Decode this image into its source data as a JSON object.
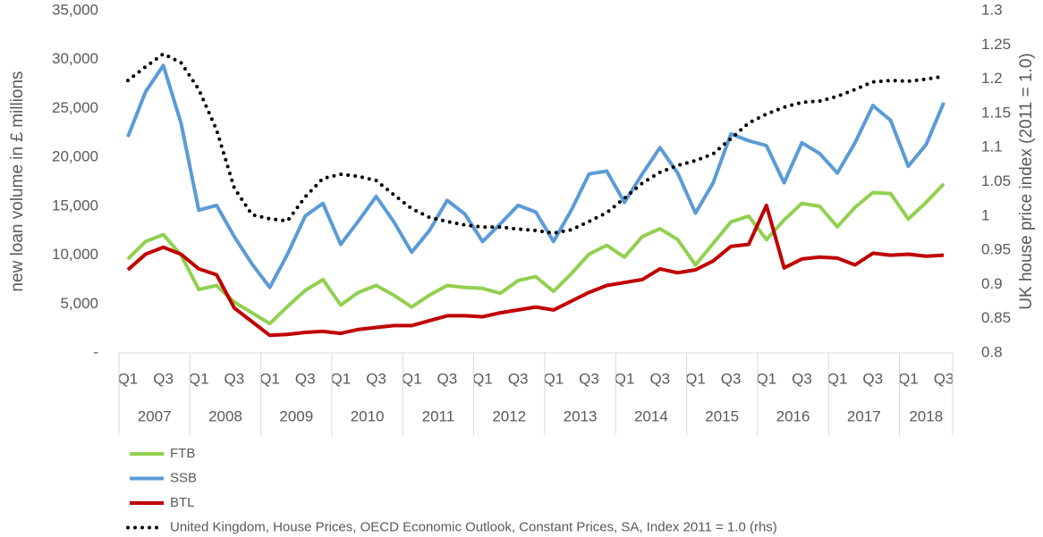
{
  "chart_data": {
    "type": "line",
    "categories": [
      "Q1",
      null,
      "Q3",
      null,
      "Q1",
      null,
      "Q3",
      null,
      "Q1",
      null,
      "Q3",
      null,
      "Q1",
      null,
      "Q3",
      null,
      "Q1",
      null,
      "Q3",
      null,
      "Q1",
      null,
      "Q3",
      null,
      "Q1",
      null,
      "Q3",
      null,
      "Q1",
      null,
      "Q3",
      null,
      "Q1",
      null,
      "Q3",
      null,
      "Q1",
      null,
      "Q3",
      null,
      "Q1",
      null,
      "Q3",
      null,
      "Q1",
      null,
      "Q3"
    ],
    "years": [
      "2007",
      "2008",
      "2009",
      "2010",
      "2011",
      "2012",
      "2013",
      "2014",
      "2015",
      "2016",
      "2017",
      "2018"
    ],
    "ylabel": "new loan volume in £ millions",
    "y2label": "UK house price index (2011 = 1.0)",
    "ylim": [
      0,
      35000
    ],
    "yticks": [
      {
        "value": 0,
        "label": "-"
      },
      {
        "value": 5000,
        "label": "5,000"
      },
      {
        "value": 10000,
        "label": "10,000"
      },
      {
        "value": 15000,
        "label": "15,000"
      },
      {
        "value": 20000,
        "label": "20,000"
      },
      {
        "value": 25000,
        "label": "25,000"
      },
      {
        "value": 30000,
        "label": "30,000"
      },
      {
        "value": 35000,
        "label": "35,000"
      }
    ],
    "y2lim": [
      0.8,
      1.3
    ],
    "y2ticks": [
      0.8,
      0.85,
      0.9,
      0.95,
      1,
      1.05,
      1.1,
      1.15,
      1.2,
      1.25,
      1.3
    ],
    "legend": "bottom-left",
    "series": [
      {
        "name": "FTB",
        "color": "#92d050",
        "values": [
          9600,
          11400,
          12100,
          10000,
          6500,
          6900,
          5200,
          4100,
          3000,
          4750,
          6400,
          7500,
          4900,
          6200,
          6900,
          5900,
          4700,
          5900,
          6900,
          6700,
          6600,
          6100,
          7400,
          7800,
          6300,
          8100,
          10100,
          11000,
          9800,
          11900,
          12700,
          11600,
          9000,
          11200,
          13400,
          14000,
          11600,
          13600,
          15300,
          15000,
          12900,
          14900,
          16400,
          16300,
          13700,
          15400,
          17300
        ]
      },
      {
        "name": "SSB",
        "color": "#5b9bd5",
        "values": [
          22100,
          26700,
          29400,
          23500,
          14600,
          15100,
          11900,
          9100,
          6700,
          10100,
          14000,
          15300,
          11100,
          13500,
          16000,
          13400,
          10300,
          12500,
          15600,
          14200,
          11400,
          13200,
          15100,
          14400,
          11400,
          14600,
          18300,
          18600,
          15400,
          18300,
          21000,
          18400,
          14300,
          17400,
          22400,
          21700,
          21200,
          17400,
          21500,
          20400,
          18400,
          21500,
          25300,
          23800,
          19100,
          21300,
          25600
        ]
      },
      {
        "name": "BTL",
        "color": "#c00000",
        "values": [
          8500,
          10100,
          10800,
          10100,
          8600,
          8000,
          4600,
          3200,
          1800,
          1900,
          2100,
          2200,
          2000,
          2400,
          2600,
          2800,
          2800,
          3300,
          3800,
          3800,
          3700,
          4100,
          4400,
          4700,
          4400,
          5300,
          6200,
          6900,
          7200,
          7500,
          8600,
          8200,
          8500,
          9400,
          10900,
          11100,
          15100,
          8700,
          9600,
          9800,
          9700,
          9000,
          10200,
          10000,
          10100,
          9900,
          10000
        ]
      },
      {
        "name": "United Kingdom, House Prices, OECD Economic Outlook, Constant Prices, SA, Index 2011 = 1.0 (rhs)",
        "color": "#000000",
        "dash": "dotted",
        "axis": "y2",
        "values": [
          1.198,
          1.218,
          1.237,
          1.224,
          1.185,
          1.126,
          1.041,
          1.002,
          0.996,
          0.993,
          1.028,
          1.055,
          1.061,
          1.058,
          1.052,
          1.031,
          1.011,
          0.998,
          0.992,
          0.987,
          0.984,
          0.984,
          0.981,
          0.979,
          0.975,
          0.98,
          0.992,
          1.005,
          1.026,
          1.048,
          1.064,
          1.074,
          1.081,
          1.091,
          1.113,
          1.136,
          1.149,
          1.159,
          1.166,
          1.168,
          1.175,
          1.185,
          1.196,
          1.198,
          1.197,
          1.2,
          1.204
        ]
      }
    ]
  }
}
